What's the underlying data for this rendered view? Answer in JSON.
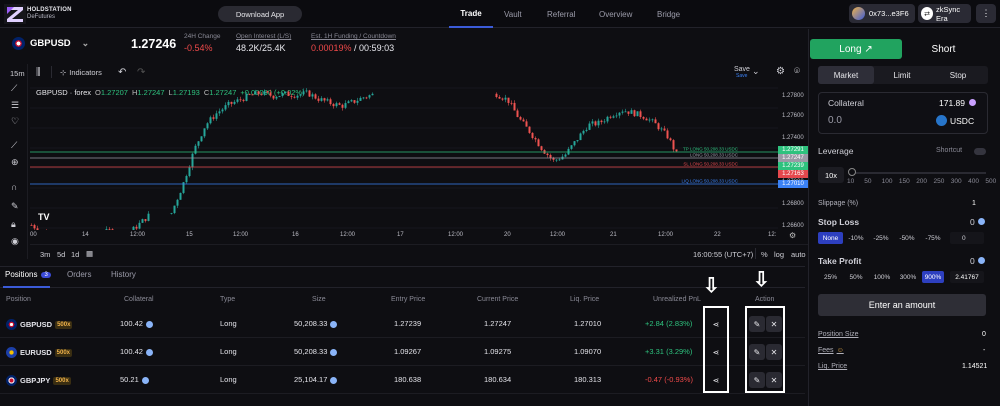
{
  "topbar": {
    "brand_line1": "HOLDSTATION",
    "brand_line2": "DeFutures",
    "download_label": "Download App",
    "nav": [
      "Trade",
      "Vault",
      "Referral",
      "Overview",
      "Bridge"
    ],
    "account": "0x73...e3F6",
    "network": "zkSync Era",
    "more": "⋮"
  },
  "market": {
    "pair": "GBPUSD",
    "price": "1.27246",
    "change_label": "24H Change",
    "change_value": "-0.54%",
    "oi_label": "Open Interest (L/S)",
    "oi_value": "48.2K/25.4K",
    "funding_label": "Est. 1H Funding / Countdown",
    "funding_rate": "0.00019%",
    "funding_countdown": " / 00:59:03"
  },
  "chart_toolbar": {
    "interval": "15m",
    "indicators": "Indicators",
    "save": "Save",
    "save_sub": "Save"
  },
  "chart_legend": {
    "symbol": "GBPUSD · forex",
    "o": "O",
    "o_v": "1.27207",
    "h": "H",
    "h_v": "1.27247",
    "l": "L",
    "l_v": "1.27193",
    "c": "C",
    "c_v": "1.27247",
    "chg": "+0.00030 (+0.02%)"
  },
  "chart_data": {
    "type": "candlestick",
    "y_ticks": [
      "1.27800",
      "1.27600",
      "1.27400",
      "1.27200",
      "1.27000",
      "1.26800",
      "1.26600"
    ],
    "x_ticks": [
      "00",
      "14",
      "12:00",
      "15",
      "12:00",
      "16",
      "12:00",
      "17",
      "12:00",
      "20",
      "12:00",
      "21",
      "12:00",
      "22",
      "12:"
    ],
    "order_lines": [
      {
        "label": "TP LONG 50,208.33 USDC",
        "price": "1.27291",
        "color": "#2ec27e"
      },
      {
        "label": "LONG 50,208.33 USDC",
        "price": "1.27247",
        "color": "#9a9aa6"
      },
      {
        "label": "",
        "price": "1.27239",
        "color": "#2ec27e"
      },
      {
        "label": "SL LONG 50,208.33 USDC",
        "price": "1.27163",
        "color": "#e5484d"
      },
      {
        "label": "LIQ LONG 50,208.33 USDC",
        "price": "1.27010",
        "color": "#3b82f6"
      }
    ],
    "closes": [
      1.266,
      1.2652,
      1.2645,
      1.2638,
      1.2642,
      1.265,
      1.2655,
      1.2648,
      1.266,
      1.2672,
      1.27,
      1.2735,
      1.276,
      1.2772,
      1.278,
      1.2785,
      1.279,
      1.2792,
      1.2789,
      1.2791,
      1.279,
      1.2792,
      1.2786,
      1.2782,
      1.2779,
      1.2783,
      1.2788,
      1.2791,
      1.2785,
      1.2766,
      1.2752,
      1.2736,
      1.2724,
      1.273,
      1.2745,
      1.276,
      1.2762,
      1.277,
      1.2775,
      1.2772,
      1.2768,
      1.276,
      1.2748,
      1.2725
    ]
  },
  "chart_bottom": {
    "ranges": [
      "3m",
      "5d",
      "1d"
    ],
    "time": "16:00:55 (UTC+7)",
    "pct": "%",
    "log": "log",
    "auto": "auto"
  },
  "tabs": {
    "positions": "Positions",
    "positions_count": "3",
    "orders": "Orders",
    "history": "History"
  },
  "table": {
    "headers": [
      "Position",
      "Collateral",
      "Type",
      "Size",
      "Entry Price",
      "Current Price",
      "Liq. Price",
      "Unrealized PnL",
      "Action"
    ],
    "rows": [
      {
        "pair": "GBPUSD",
        "lev": "500x",
        "collateral": "100.42",
        "type": "Long",
        "size": "50,208.33",
        "entry": "1.27239",
        "current": "1.27247",
        "liq": "1.27010",
        "pnl": "+2.84",
        "pnl_pct": "(2.83%)",
        "pnl_color": "#2ec27e"
      },
      {
        "pair": "EURUSD",
        "lev": "500x",
        "collateral": "100.42",
        "type": "Long",
        "size": "50,208.33",
        "entry": "1.09267",
        "current": "1.09275",
        "liq": "1.09070",
        "pnl": "+3.31",
        "pnl_pct": "(3.29%)",
        "pnl_color": "#2ec27e"
      },
      {
        "pair": "GBPJPY",
        "lev": "500x",
        "collateral": "50.21",
        "type": "Long",
        "size": "25,104.17",
        "entry": "180.638",
        "current": "180.634",
        "liq": "180.313",
        "pnl": "-0.47",
        "pnl_pct": "(-0.93%)",
        "pnl_color": "#f04a4a"
      }
    ]
  },
  "panel": {
    "long": "Long ↗",
    "short": "Short",
    "order_types": [
      "Market",
      "Limit",
      "Stop"
    ],
    "collateral_label": "Collateral",
    "collateral_balance": "171.89",
    "collateral_input": "0.0",
    "collateral_token": "USDC",
    "leverage_label": "Leverage",
    "shortcut_label": "Shortcut",
    "leverage_value": "10x",
    "leverage_ticks": [
      "10",
      "50",
      "100",
      "150",
      "200",
      "250",
      "300",
      "400",
      "500"
    ],
    "slippage_label": "Slippage (%)",
    "slippage_value": "1",
    "stoploss_label": "Stop Loss",
    "stoploss_value": "0",
    "sl_chips": [
      "None",
      "-10%",
      "-25%",
      "-50%",
      "-75%"
    ],
    "sl_input": "0",
    "takeprofit_label": "Take Profit",
    "takeprofit_value": "0",
    "tp_chips": [
      "25%",
      "50%",
      "100%",
      "300%",
      "900%"
    ],
    "tp_input": "2.41767",
    "enter_label": "Enter an amount",
    "position_size_label": "Position Size",
    "position_size_value": "0",
    "fees_label": "Fees",
    "fees_value": "-",
    "liq_price_label": "Liq. Price",
    "liq_price_value": "1.14521"
  }
}
